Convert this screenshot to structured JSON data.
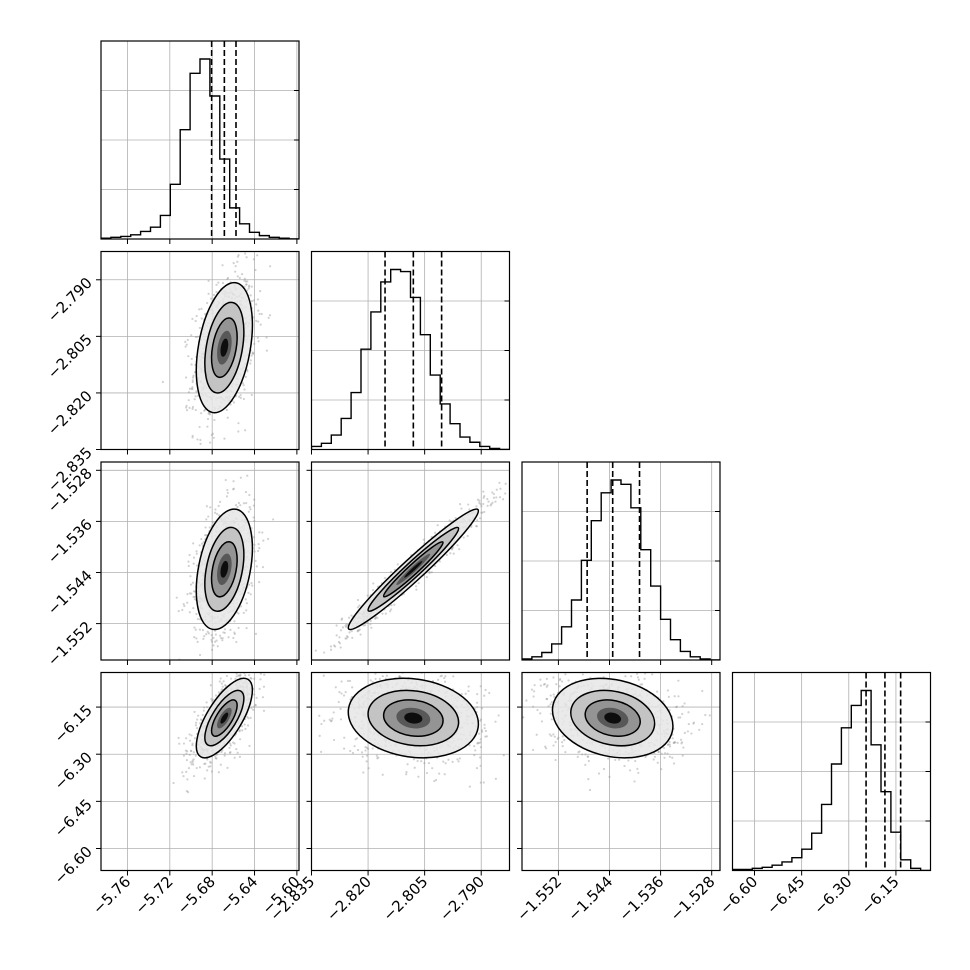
{
  "chart_data": {
    "type": "corner",
    "description_free": true,
    "parameters": [
      {
        "ticks": [
          -5.76,
          -5.72,
          -5.68,
          -5.64,
          -5.6
        ],
        "tick_labels": [
          "−5.76",
          "−5.72",
          "−5.68",
          "−5.64",
          "−5.60"
        ],
        "range": [
          -5.785,
          -5.598
        ],
        "quantiles": [
          -5.6805,
          -5.6685,
          -5.6575
        ]
      },
      {
        "ticks": [
          -2.835,
          -2.82,
          -2.805,
          -2.79
        ],
        "tick_labels": [
          "−2.835",
          "−2.820",
          "−2.805",
          "−2.790"
        ],
        "range": [
          -2.835,
          -2.7825
        ],
        "quantiles": [
          -2.8155,
          -2.808,
          -2.8005
        ]
      },
      {
        "ticks": [
          -1.552,
          -1.544,
          -1.536,
          -1.528
        ],
        "tick_labels": [
          "−1.552",
          "−1.544",
          "−1.536",
          "−1.528"
        ],
        "range": [
          -1.5577,
          -1.5267
        ],
        "quantiles": [
          -1.5475,
          -1.5435,
          -1.5393
        ]
      },
      {
        "ticks": [
          -6.6,
          -6.45,
          -6.3,
          -6.15
        ],
        "tick_labels": [
          "−6.60",
          "−6.45",
          "−6.30",
          "−6.15"
        ],
        "range": [
          -6.67,
          -6.04
        ],
        "quantiles": [
          -6.245,
          -6.185,
          -6.135
        ]
      }
    ],
    "histograms": [
      {
        "counts": [
          1,
          2,
          3,
          5,
          9,
          14,
          28,
          65,
          130,
          197,
          214,
          170,
          95,
          37,
          18,
          8,
          4,
          2,
          1,
          0
        ]
      },
      {
        "counts": [
          3,
          6,
          14,
          30,
          55,
          97,
          133,
          162,
          174,
          172,
          147,
          111,
          72,
          44,
          25,
          12,
          7,
          3,
          1,
          0
        ]
      },
      {
        "counts": [
          1,
          3,
          7,
          15,
          31,
          56,
          93,
          130,
          156,
          168,
          164,
          142,
          103,
          69,
          38,
          19,
          8,
          3,
          1,
          0
        ]
      },
      {
        "counts": [
          1,
          1,
          2,
          3,
          5,
          8,
          12,
          20,
          35,
          62,
          100,
          134,
          155,
          169,
          118,
          74,
          36,
          10,
          2,
          0
        ]
      }
    ],
    "pairs": [
      {
        "row": 1,
        "col": 0,
        "correlation": 0.35
      },
      {
        "row": 2,
        "col": 0,
        "correlation": 0.35
      },
      {
        "row": 2,
        "col": 1,
        "correlation": 0.97
      },
      {
        "row": 3,
        "col": 0,
        "correlation": 0.7
      },
      {
        "row": 3,
        "col": 1,
        "correlation": -0.15
      },
      {
        "row": 3,
        "col": 2,
        "correlation": -0.2
      }
    ],
    "contour_levels": [
      0.39,
      0.86,
      0.99
    ],
    "grid": true,
    "legend": "none"
  }
}
